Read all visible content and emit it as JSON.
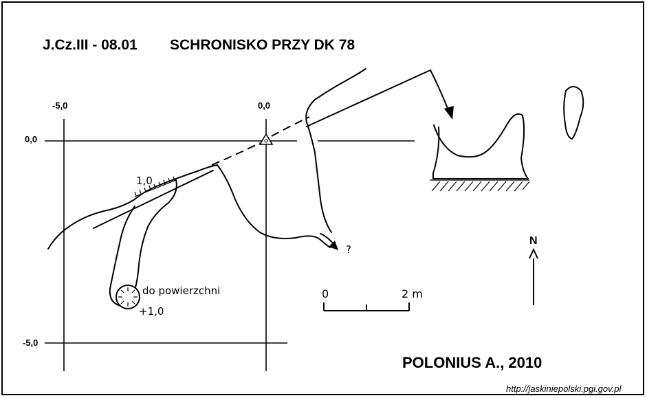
{
  "title": {
    "code": "J.Cz.III - 08.01",
    "name": "SCHRONISKO PRZY DK 78"
  },
  "grid": {
    "x_labels": [
      "-5,0",
      "0,0"
    ],
    "y_labels": [
      "0,0",
      "-5,0"
    ]
  },
  "annotations": {
    "height_step": "1,0",
    "to_surface": "do powierzchni",
    "chimney_height": "+1,0",
    "unknown": "?"
  },
  "scale": {
    "start": "0",
    "end": "2 m"
  },
  "north": {
    "label": "N"
  },
  "author": "POLONIUS A., 2010",
  "source": "http://jaskiniepolski.pgi.gov.pl"
}
